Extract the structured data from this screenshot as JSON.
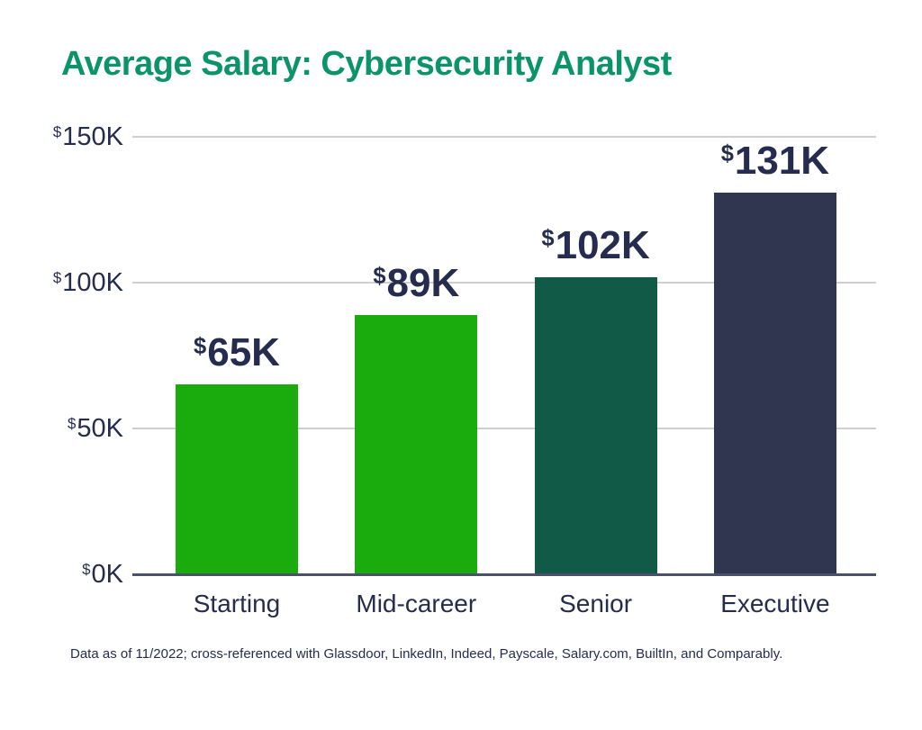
{
  "chart_data": {
    "type": "bar",
    "title": "Average Salary: Cybersecurity Analyst",
    "categories": [
      "Starting",
      "Mid-career",
      "Senior",
      "Executive"
    ],
    "values": [
      65,
      89,
      102,
      131
    ],
    "value_prefix": "$",
    "value_texts": [
      "65K",
      "89K",
      "102K",
      "131K"
    ],
    "bar_colors": [
      "#19ac0c",
      "#19ac0c",
      "#115a47",
      "#30364f"
    ],
    "ylim": [
      0,
      150
    ],
    "yticks": [
      0,
      50,
      100,
      150
    ],
    "ytick_prefix": "$",
    "ytick_texts": [
      "0K",
      "50K",
      "100K",
      "150K"
    ],
    "grid": true,
    "legend": "none",
    "xlabel": "",
    "ylabel": ""
  },
  "footer": {
    "note": "Data as of 11/2022; cross-referenced with Glassdoor, LinkedIn, Indeed, Payscale, Salary.com, BuiltIn, and Comparably."
  },
  "colors": {
    "title": "#0b9468",
    "text": "#262c4d",
    "gridline": "#cfcfcf",
    "axis_line": "#4c516a",
    "background": "#ffffff"
  }
}
